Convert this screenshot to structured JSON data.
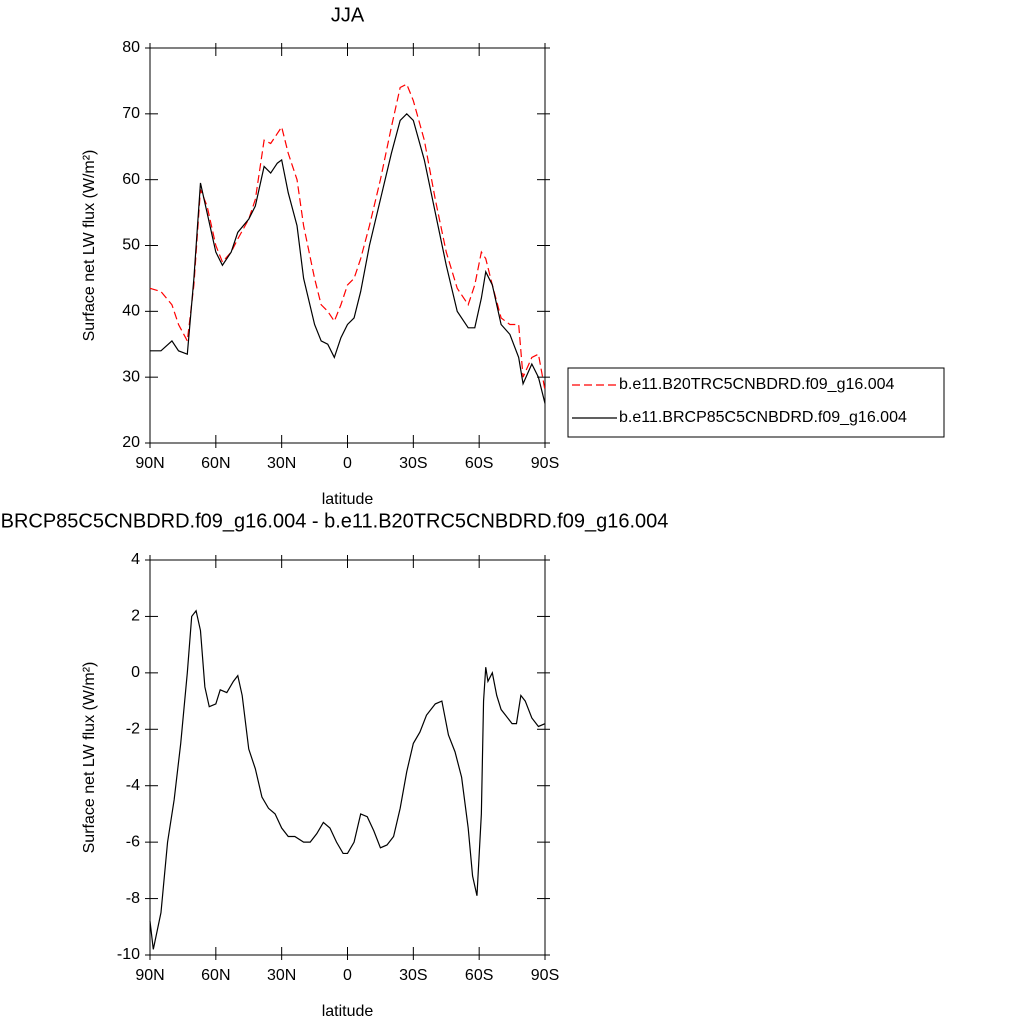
{
  "chart_data": [
    {
      "type": "line",
      "title": "JJA",
      "xlabel": "latitude",
      "ylabel": "Surface net LW flux (W/m²)",
      "x": [
        90,
        85,
        80,
        77,
        73,
        70,
        67,
        64,
        60,
        57,
        53,
        50,
        45,
        42,
        38,
        35,
        32,
        30,
        27,
        23,
        20,
        15,
        12,
        9,
        6,
        3,
        0,
        -3,
        -6,
        -10,
        -15,
        -20,
        -24,
        -27,
        -30,
        -35,
        -40,
        -45,
        -50,
        -55,
        -58,
        -61,
        -63,
        -66,
        -70,
        -74,
        -78,
        -80,
        -84,
        -87,
        -90
      ],
      "series": [
        {
          "name": "b.e11.B20TRC5CNBDRD.f09_g16.004",
          "color": "#ff0000",
          "linestyle": "dashed",
          "values": [
            43.5,
            43,
            41,
            38,
            35.5,
            44,
            58.5,
            56,
            50,
            47.5,
            49,
            51,
            54,
            57,
            66,
            65.5,
            67,
            68,
            64,
            60,
            53,
            45,
            41,
            40,
            38.5,
            41,
            44,
            45,
            48,
            53,
            60,
            68,
            74,
            74.5,
            72,
            66,
            57,
            49,
            43.5,
            41,
            44,
            49,
            48,
            44,
            39,
            38,
            38,
            30,
            33,
            33.5,
            28
          ]
        },
        {
          "name": "b.e11.BRCP85C5CNBDRD.f09_g16.004",
          "color": "#000000",
          "linestyle": "solid",
          "values": [
            34,
            34,
            35.5,
            34,
            33.5,
            45,
            59.5,
            55,
            49,
            47,
            49,
            52,
            54,
            56,
            62,
            61,
            62.5,
            63,
            58,
            53,
            45,
            38,
            35.5,
            35,
            33,
            36,
            38,
            39,
            43,
            50,
            57,
            64,
            69,
            70,
            69,
            63,
            55,
            47,
            40,
            37.5,
            37.5,
            42,
            46,
            44,
            38,
            36.5,
            33,
            29,
            32,
            30,
            26
          ]
        }
      ],
      "xlim": [
        90,
        -90
      ],
      "xticks": [
        {
          "value": 90,
          "label": "90N"
        },
        {
          "value": 60,
          "label": "60N"
        },
        {
          "value": 30,
          "label": "30N"
        },
        0,
        {
          "value": -30,
          "label": "30S"
        },
        {
          "value": -60,
          "label": "60S"
        },
        {
          "value": -90,
          "label": "90S"
        }
      ],
      "ylim": [
        20,
        80
      ],
      "yticks": [
        20,
        30,
        40,
        50,
        60,
        70,
        80
      ],
      "grid": false,
      "legend": "right"
    },
    {
      "type": "line",
      "title": "BRCP85C5CNBDRD.f09_g16.004 - b.e11.B20TRC5CNBDRD.f09_g16.004",
      "xlabel": "latitude",
      "ylabel": "Surface net LW flux (W/m²)",
      "x": [
        90,
        88.5,
        85,
        82,
        79,
        76,
        73,
        71,
        69,
        67,
        65,
        63,
        60,
        58,
        55,
        52,
        50,
        48,
        45,
        42,
        39,
        36,
        33,
        30,
        27,
        24,
        20,
        17,
        14,
        11,
        8,
        5,
        2,
        0,
        -3,
        -6,
        -9,
        -12,
        -15,
        -18,
        -21,
        -24,
        -27,
        -30,
        -33,
        -36,
        -40,
        -43,
        -46,
        -49,
        -52,
        -55,
        -57,
        -59,
        -61,
        -62,
        -63,
        -64,
        -66,
        -68,
        -70,
        -72,
        -75,
        -77,
        -79,
        -81,
        -84,
        -87,
        -90
      ],
      "values": [
        -8.8,
        -9.8,
        -8.5,
        -6,
        -4.5,
        -2.5,
        0,
        2,
        2.2,
        1.5,
        -0.5,
        -1.2,
        -1.1,
        -0.6,
        -0.7,
        -0.3,
        -0.1,
        -0.8,
        -2.7,
        -3.4,
        -4.4,
        -4.8,
        -5,
        -5.5,
        -5.8,
        -5.8,
        -6,
        -6,
        -5.7,
        -5.3,
        -5.5,
        -6,
        -6.4,
        -6.4,
        -6,
        -5,
        -5.1,
        -5.6,
        -6.2,
        -6.1,
        -5.8,
        -4.8,
        -3.5,
        -2.5,
        -2.1,
        -1.5,
        -1.1,
        -1,
        -2.2,
        -2.8,
        -3.7,
        -5.5,
        -7.2,
        -7.9,
        -5,
        -1,
        0.2,
        -0.3,
        0,
        -0.8,
        -1.3,
        -1.5,
        -1.8,
        -1.8,
        -0.8,
        -1,
        -1.6,
        -1.9,
        -1.8
      ],
      "color": "#000000",
      "xlim": [
        90,
        -90
      ],
      "xticks": [
        {
          "value": 90,
          "label": "90N"
        },
        {
          "value": 60,
          "label": "60N"
        },
        {
          "value": 30,
          "label": "30N"
        },
        0,
        {
          "value": -30,
          "label": "30S"
        },
        {
          "value": -60,
          "label": "60S"
        },
        {
          "value": -90,
          "label": "90S"
        }
      ],
      "ylim": [
        -10,
        4
      ],
      "yticks": [
        -10,
        -8,
        -6,
        -4,
        -2,
        0,
        2,
        4
      ],
      "grid": false
    }
  ]
}
